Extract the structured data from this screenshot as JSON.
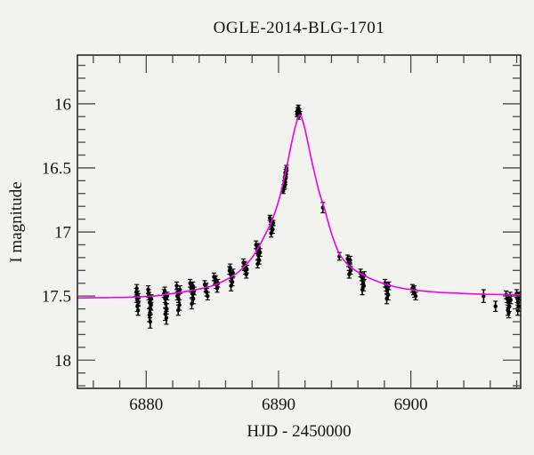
{
  "chart_data": {
    "type": "scatter",
    "title": "OGLE-2014-BLG-1701",
    "xlabel": "HJD - 2450000",
    "ylabel": "I magnitude",
    "x_range": [
      6874.8,
      6908.3
    ],
    "y_range": [
      15.62,
      18.22
    ],
    "y_axis_inverted_magnitude": true,
    "x_major_ticks": [
      6880,
      6890,
      6900
    ],
    "x_tick_labels": [
      "6880",
      "6890",
      "6900"
    ],
    "x_minor_tick_step": 2,
    "y_major_ticks": [
      16,
      16.5,
      17,
      17.5,
      18
    ],
    "y_tick_labels": [
      "16",
      "16.5",
      "17",
      "17.5",
      "18"
    ],
    "y_minor_tick_step": 0.1,
    "grid": false,
    "legend": "none",
    "background_color": "#f2f2ef",
    "frame_color": "#1a1a1a",
    "tick_color": "#4a4a4a",
    "text_color": "#141414",
    "series": [
      {
        "name": "OGLE I-band photometry",
        "type": "scatter",
        "marker": "filled-circle-with-error-bars",
        "color": "#000000",
        "points": [
          [
            6879.25,
            17.47,
            0.03
          ],
          [
            6879.3,
            17.52,
            0.03
          ],
          [
            6879.35,
            17.49,
            0.03
          ],
          [
            6879.4,
            17.55,
            0.03
          ],
          [
            6879.33,
            17.58,
            0.04
          ],
          [
            6879.38,
            17.61,
            0.04
          ],
          [
            6879.28,
            17.44,
            0.03
          ],
          [
            6879.42,
            17.51,
            0.03
          ],
          [
            6880.15,
            17.45,
            0.03
          ],
          [
            6880.2,
            17.5,
            0.03
          ],
          [
            6880.26,
            17.55,
            0.04
          ],
          [
            6880.33,
            17.6,
            0.04
          ],
          [
            6880.24,
            17.65,
            0.05
          ],
          [
            6880.3,
            17.7,
            0.05
          ],
          [
            6880.38,
            17.52,
            0.03
          ],
          [
            6880.18,
            17.48,
            0.03
          ],
          [
            6880.36,
            17.57,
            0.04
          ],
          [
            6880.28,
            17.63,
            0.04
          ],
          [
            6881.35,
            17.48,
            0.03
          ],
          [
            6881.42,
            17.52,
            0.03
          ],
          [
            6881.48,
            17.56,
            0.04
          ],
          [
            6881.55,
            17.6,
            0.04
          ],
          [
            6881.44,
            17.64,
            0.05
          ],
          [
            6881.52,
            17.67,
            0.05
          ],
          [
            6881.58,
            17.5,
            0.03
          ],
          [
            6881.4,
            17.46,
            0.03
          ],
          [
            6882.3,
            17.42,
            0.03
          ],
          [
            6882.37,
            17.47,
            0.03
          ],
          [
            6882.44,
            17.52,
            0.03
          ],
          [
            6882.51,
            17.57,
            0.04
          ],
          [
            6882.42,
            17.61,
            0.04
          ],
          [
            6882.35,
            17.5,
            0.03
          ],
          [
            6882.55,
            17.45,
            0.03
          ],
          [
            6883.32,
            17.4,
            0.03
          ],
          [
            6883.4,
            17.44,
            0.03
          ],
          [
            6883.48,
            17.48,
            0.03
          ],
          [
            6883.56,
            17.52,
            0.04
          ],
          [
            6883.44,
            17.56,
            0.04
          ],
          [
            6883.52,
            17.42,
            0.03
          ],
          [
            6883.62,
            17.46,
            0.03
          ],
          [
            6884.42,
            17.41,
            0.03
          ],
          [
            6884.5,
            17.44,
            0.03
          ],
          [
            6884.57,
            17.47,
            0.03
          ],
          [
            6884.64,
            17.5,
            0.03
          ],
          [
            6884.53,
            17.43,
            0.03
          ],
          [
            6885.12,
            17.35,
            0.03
          ],
          [
            6885.2,
            17.38,
            0.03
          ],
          [
            6885.28,
            17.41,
            0.03
          ],
          [
            6885.36,
            17.44,
            0.03
          ],
          [
            6885.24,
            17.37,
            0.03
          ],
          [
            6885.42,
            17.4,
            0.03
          ],
          [
            6886.3,
            17.3,
            0.03
          ],
          [
            6886.37,
            17.33,
            0.03
          ],
          [
            6886.44,
            17.36,
            0.03
          ],
          [
            6886.51,
            17.39,
            0.03
          ],
          [
            6886.41,
            17.42,
            0.04
          ],
          [
            6886.56,
            17.32,
            0.03
          ],
          [
            6886.34,
            17.28,
            0.03
          ],
          [
            6887.35,
            17.24,
            0.03
          ],
          [
            6887.42,
            17.27,
            0.03
          ],
          [
            6887.49,
            17.3,
            0.03
          ],
          [
            6887.56,
            17.33,
            0.03
          ],
          [
            6887.45,
            17.26,
            0.03
          ],
          [
            6887.6,
            17.29,
            0.03
          ],
          [
            6888.3,
            17.1,
            0.03
          ],
          [
            6888.38,
            17.14,
            0.03
          ],
          [
            6888.46,
            17.18,
            0.03
          ],
          [
            6888.54,
            17.22,
            0.03
          ],
          [
            6888.42,
            17.25,
            0.03
          ],
          [
            6888.5,
            17.12,
            0.03
          ],
          [
            6888.6,
            17.16,
            0.03
          ],
          [
            6889.35,
            16.89,
            0.02
          ],
          [
            6889.42,
            16.92,
            0.02
          ],
          [
            6889.49,
            16.95,
            0.02
          ],
          [
            6889.56,
            16.98,
            0.03
          ],
          [
            6889.44,
            17.01,
            0.03
          ],
          [
            6889.6,
            16.93,
            0.02
          ],
          [
            6890.35,
            16.68,
            0.02
          ],
          [
            6890.4,
            16.65,
            0.02
          ],
          [
            6890.44,
            16.62,
            0.02
          ],
          [
            6890.48,
            16.59,
            0.02
          ],
          [
            6890.52,
            16.56,
            0.02
          ],
          [
            6890.56,
            16.53,
            0.02
          ],
          [
            6890.6,
            16.5,
            0.02
          ],
          [
            6890.5,
            16.61,
            0.02
          ],
          [
            6890.55,
            16.55,
            0.02
          ],
          [
            6890.46,
            16.64,
            0.02
          ],
          [
            6891.4,
            16.08,
            0.02
          ],
          [
            6891.45,
            16.05,
            0.02
          ],
          [
            6891.5,
            16.03,
            0.02
          ],
          [
            6891.56,
            16.06,
            0.02
          ],
          [
            6891.52,
            16.1,
            0.02
          ],
          [
            6891.62,
            16.08,
            0.02
          ],
          [
            6891.47,
            16.07,
            0.02
          ],
          [
            6893.35,
            16.81,
            0.04
          ],
          [
            6894.6,
            17.19,
            0.03
          ],
          [
            6895.22,
            17.21,
            0.03
          ],
          [
            6895.3,
            17.24,
            0.03
          ],
          [
            6895.38,
            17.27,
            0.03
          ],
          [
            6895.46,
            17.3,
            0.03
          ],
          [
            6895.34,
            17.33,
            0.03
          ],
          [
            6895.42,
            17.22,
            0.03
          ],
          [
            6896.2,
            17.32,
            0.03
          ],
          [
            6896.28,
            17.35,
            0.03
          ],
          [
            6896.36,
            17.38,
            0.03
          ],
          [
            6896.44,
            17.42,
            0.04
          ],
          [
            6896.33,
            17.45,
            0.04
          ],
          [
            6896.48,
            17.34,
            0.03
          ],
          [
            6896.4,
            17.4,
            0.03
          ],
          [
            6898.05,
            17.4,
            0.03
          ],
          [
            6898.13,
            17.43,
            0.03
          ],
          [
            6898.21,
            17.46,
            0.03
          ],
          [
            6898.29,
            17.49,
            0.04
          ],
          [
            6898.18,
            17.52,
            0.04
          ],
          [
            6898.34,
            17.42,
            0.03
          ],
          [
            6900.12,
            17.44,
            0.03
          ],
          [
            6900.2,
            17.46,
            0.03
          ],
          [
            6900.28,
            17.48,
            0.03
          ],
          [
            6900.36,
            17.5,
            0.03
          ],
          [
            6900.25,
            17.45,
            0.03
          ],
          [
            6905.5,
            17.5,
            0.05
          ],
          [
            6906.4,
            17.58,
            0.04
          ],
          [
            6907.2,
            17.49,
            0.03
          ],
          [
            6907.28,
            17.52,
            0.03
          ],
          [
            6907.36,
            17.55,
            0.04
          ],
          [
            6907.44,
            17.58,
            0.04
          ],
          [
            6907.33,
            17.61,
            0.04
          ],
          [
            6907.5,
            17.5,
            0.03
          ],
          [
            6907.4,
            17.63,
            0.04
          ],
          [
            6907.55,
            17.53,
            0.03
          ],
          [
            6908.0,
            17.48,
            0.03
          ],
          [
            6908.05,
            17.52,
            0.03
          ],
          [
            6908.1,
            17.55,
            0.04
          ],
          [
            6908.14,
            17.58,
            0.04
          ],
          [
            6908.08,
            17.61,
            0.04
          ],
          [
            6908.18,
            17.5,
            0.03
          ]
        ]
      },
      {
        "name": "Microlensing model fit",
        "type": "line",
        "color": "#f000f0",
        "points": [
          [
            6874.8,
            17.515
          ],
          [
            6877,
            17.512
          ],
          [
            6879,
            17.508
          ],
          [
            6880.5,
            17.5
          ],
          [
            6882,
            17.48
          ],
          [
            6883.5,
            17.455
          ],
          [
            6885,
            17.42
          ],
          [
            6886,
            17.375
          ],
          [
            6887,
            17.31
          ],
          [
            6888,
            17.2
          ],
          [
            6888.8,
            17.06
          ],
          [
            6889.5,
            16.91
          ],
          [
            6890.0,
            16.76
          ],
          [
            6890.5,
            16.55
          ],
          [
            6891.0,
            16.3
          ],
          [
            6891.35,
            16.15
          ],
          [
            6891.65,
            16.09
          ],
          [
            6892.0,
            16.2
          ],
          [
            6892.5,
            16.44
          ],
          [
            6893.0,
            16.66
          ],
          [
            6893.5,
            16.83
          ],
          [
            6894.0,
            17.01
          ],
          [
            6894.6,
            17.17
          ],
          [
            6895.4,
            17.27
          ],
          [
            6896.3,
            17.33
          ],
          [
            6897.2,
            17.375
          ],
          [
            6898.5,
            17.42
          ],
          [
            6900,
            17.45
          ],
          [
            6902,
            17.47
          ],
          [
            6904,
            17.48
          ],
          [
            6906,
            17.487
          ],
          [
            6908.3,
            17.49
          ]
        ]
      }
    ]
  }
}
